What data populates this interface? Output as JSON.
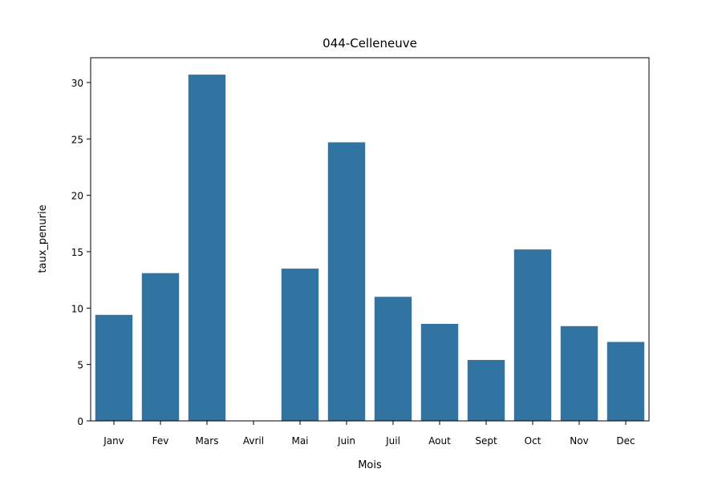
{
  "chart_data": {
    "type": "bar",
    "title": "044-Celleneuve",
    "xlabel": "Mois",
    "ylabel": "taux_penurie",
    "categories": [
      "Janv",
      "Fev",
      "Mars",
      "Avril",
      "Mai",
      "Juin",
      "Juil",
      "Aout",
      "Sept",
      "Oct",
      "Nov",
      "Dec"
    ],
    "values": [
      9.4,
      13.1,
      30.7,
      0,
      13.5,
      24.7,
      11.0,
      8.6,
      5.4,
      15.2,
      8.4,
      7.0
    ],
    "ylim": [
      0,
      32.2
    ],
    "yticks": [
      0,
      5,
      10,
      15,
      20,
      25,
      30
    ],
    "bar_color": "#3274a1",
    "grid": false,
    "legend": "none"
  }
}
